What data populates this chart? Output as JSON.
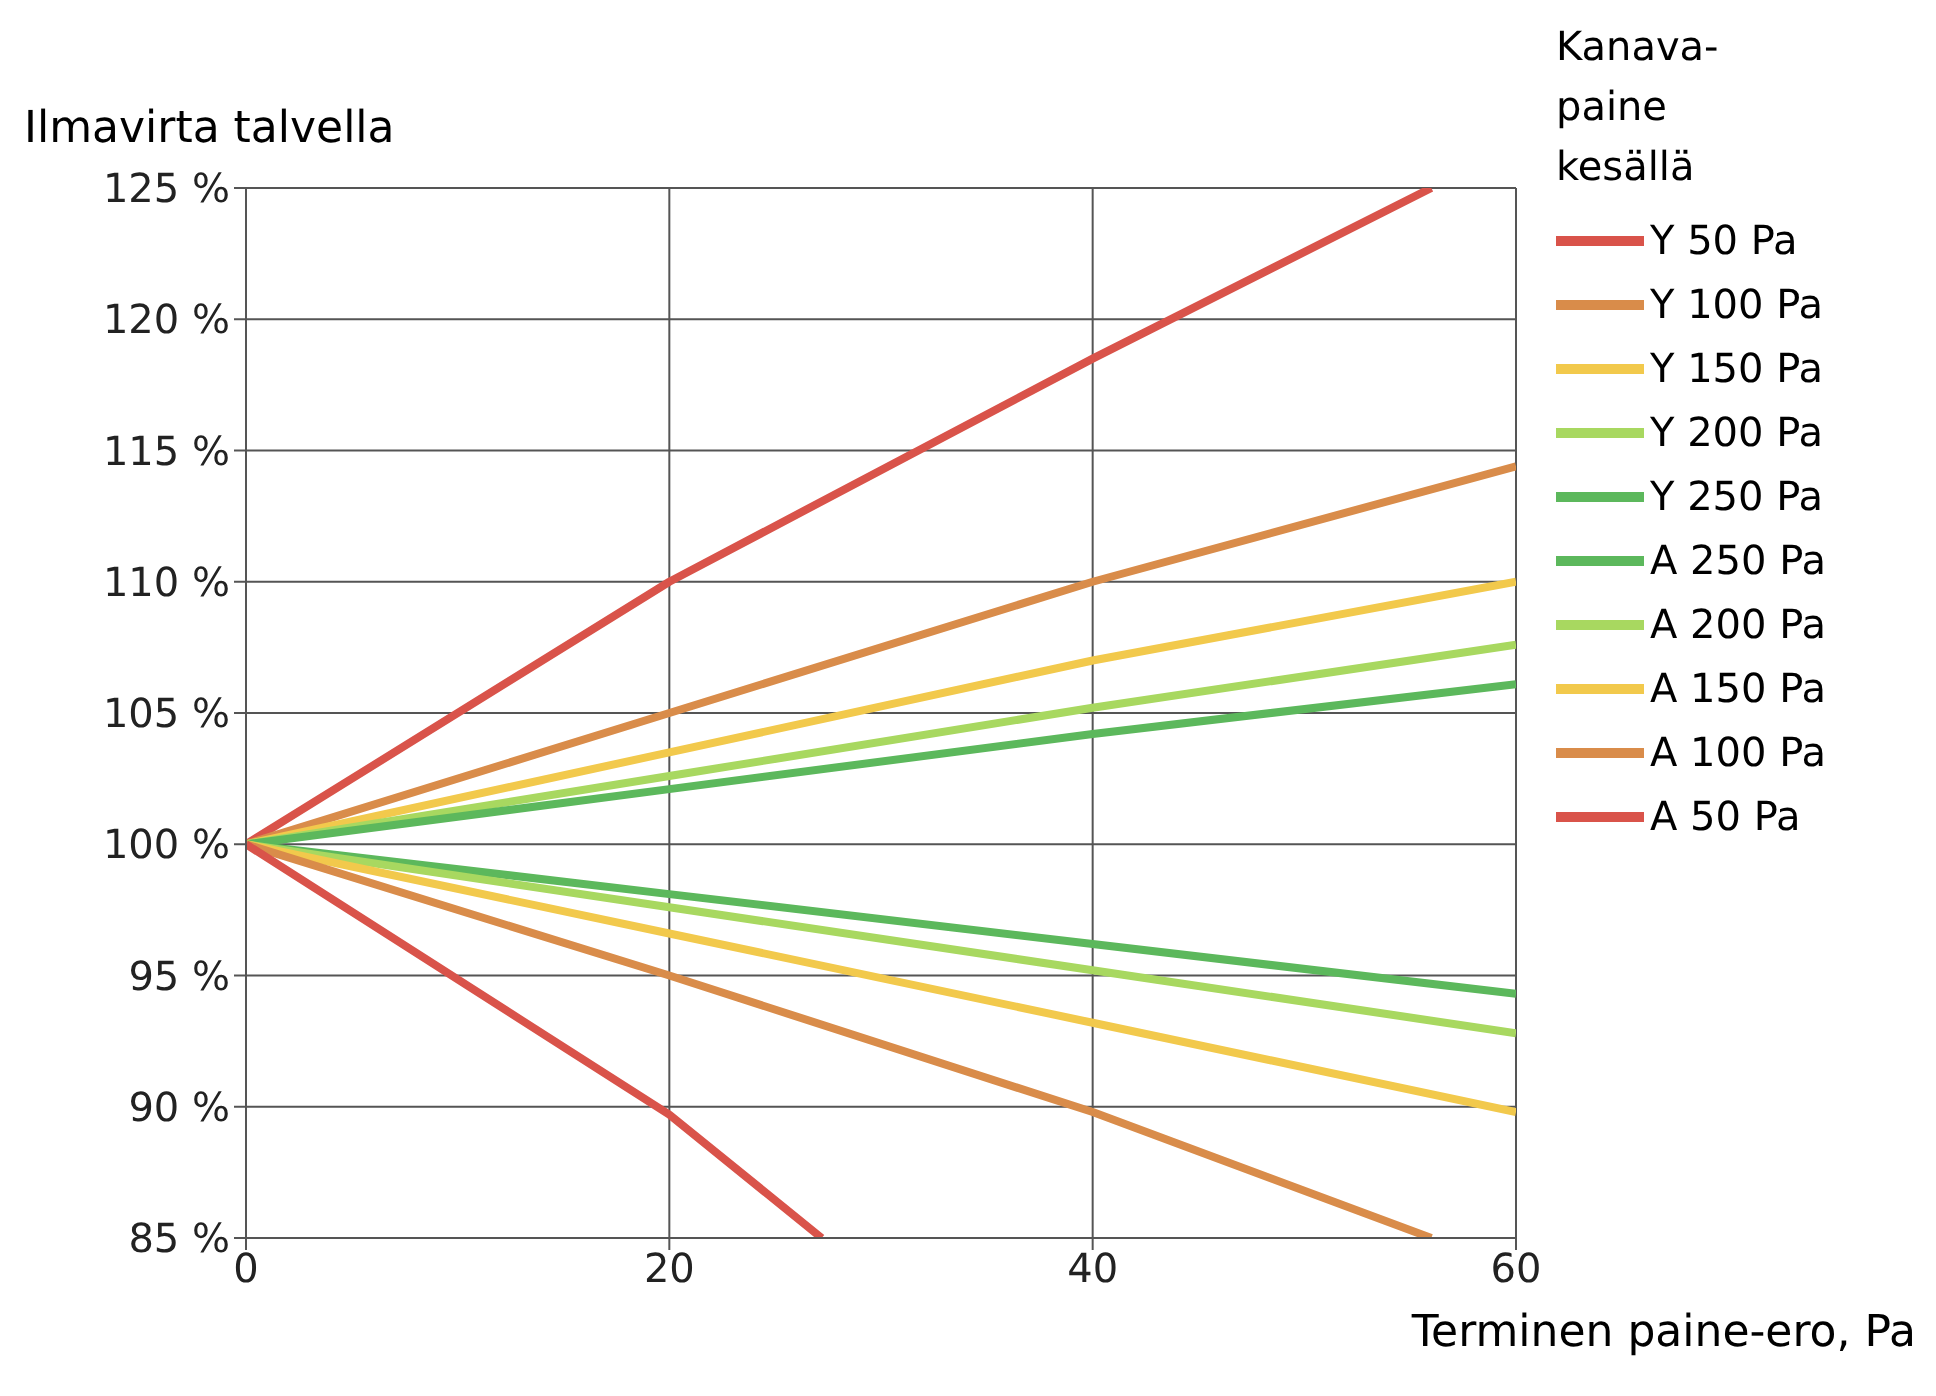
{
  "chart_data": {
    "type": "line",
    "ylabel": "Ilmavirta talvella",
    "xlabel": "Terminen paine-ero, Pa",
    "legend_title": "Kanava-paine kesällä",
    "legend": "right",
    "grid": true,
    "marker": "none",
    "line_style": "solid",
    "xlim": [
      0,
      60
    ],
    "xticks": [
      0,
      20,
      40,
      60
    ],
    "ylim": [
      85,
      125
    ],
    "yticks": [
      {
        "value": 85,
        "label": "85 %"
      },
      {
        "value": 90,
        "label": "90 %"
      },
      {
        "value": 95,
        "label": "95 %"
      },
      {
        "value": 100,
        "label": "100 %"
      },
      {
        "value": 105,
        "label": "105 %"
      },
      {
        "value": 110,
        "label": "110 %"
      },
      {
        "value": 115,
        "label": "115 %"
      },
      {
        "value": 120,
        "label": "120 %"
      },
      {
        "value": 125,
        "label": "125 %"
      }
    ],
    "series": [
      {
        "name": "Y 50 Pa",
        "color": "#d9534a",
        "x": [
          0,
          20,
          40,
          56
        ],
        "values": [
          100,
          110,
          118.5,
          125
        ]
      },
      {
        "name": "Y 100 Pa",
        "color": "#d98c4a",
        "x": [
          0,
          20,
          40,
          60
        ],
        "values": [
          100,
          105,
          110,
          114.4
        ]
      },
      {
        "name": "Y 150 Pa",
        "color": "#f2c94c",
        "x": [
          0,
          20,
          40,
          60
        ],
        "values": [
          100,
          103.5,
          107,
          110
        ]
      },
      {
        "name": "Y 200 Pa",
        "color": "#a8d860",
        "x": [
          0,
          20,
          40,
          60
        ],
        "values": [
          100,
          102.6,
          105.2,
          107.6
        ]
      },
      {
        "name": "Y 250 Pa",
        "color": "#5cb85c",
        "x": [
          0,
          20,
          40,
          60
        ],
        "values": [
          100,
          102.1,
          104.2,
          106.1
        ]
      },
      {
        "name": "A 250 Pa",
        "color": "#5cb85c",
        "x": [
          0,
          20,
          40,
          60
        ],
        "values": [
          100,
          98.1,
          96.2,
          94.3
        ]
      },
      {
        "name": "A 200 Pa",
        "color": "#a8d860",
        "x": [
          0,
          20,
          40,
          60
        ],
        "values": [
          100,
          97.6,
          95.2,
          92.8
        ]
      },
      {
        "name": "A 150 Pa",
        "color": "#f2c94c",
        "x": [
          0,
          20,
          40,
          60
        ],
        "values": [
          100,
          96.6,
          93.2,
          89.8
        ]
      },
      {
        "name": "A 100 Pa",
        "color": "#d98c4a",
        "x": [
          0,
          20,
          40,
          56
        ],
        "values": [
          100,
          95,
          89.8,
          85
        ]
      },
      {
        "name": "A 50 Pa",
        "color": "#d9534a",
        "x": [
          0,
          20,
          27.2
        ],
        "values": [
          100,
          89.7,
          85
        ]
      }
    ]
  }
}
